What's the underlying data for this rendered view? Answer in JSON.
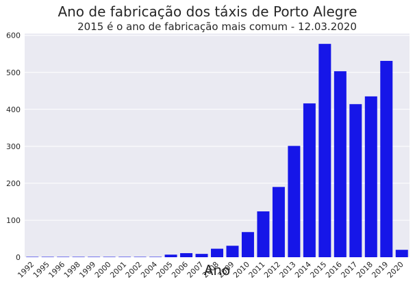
{
  "chart_data": {
    "type": "bar",
    "title": "Ano de fabricação dos táxis de Porto Alegre",
    "subtitle": "2015 é o ano de fabricação mais comum - 12.03.2020",
    "xlabel": "Ano",
    "ylabel": "",
    "categories": [
      "1992",
      "1995",
      "1996",
      "1998",
      "1999",
      "2000",
      "2001",
      "2002",
      "2004",
      "2005",
      "2006",
      "2007",
      "2008",
      "2009",
      "2010",
      "2011",
      "2012",
      "2013",
      "2014",
      "2015",
      "2016",
      "2017",
      "2018",
      "2019",
      "2020"
    ],
    "values": [
      1,
      1,
      1,
      1,
      1,
      1,
      1,
      1,
      1,
      7,
      11,
      9,
      23,
      31,
      68,
      124,
      190,
      301,
      416,
      577,
      503,
      414,
      435,
      531,
      20
    ],
    "ylim": [
      0,
      605
    ],
    "yticks": [
      0,
      100,
      200,
      300,
      400,
      500,
      600
    ],
    "bar_color": "#1616e8",
    "background_color": "#eaeaf2",
    "grid": true
  }
}
